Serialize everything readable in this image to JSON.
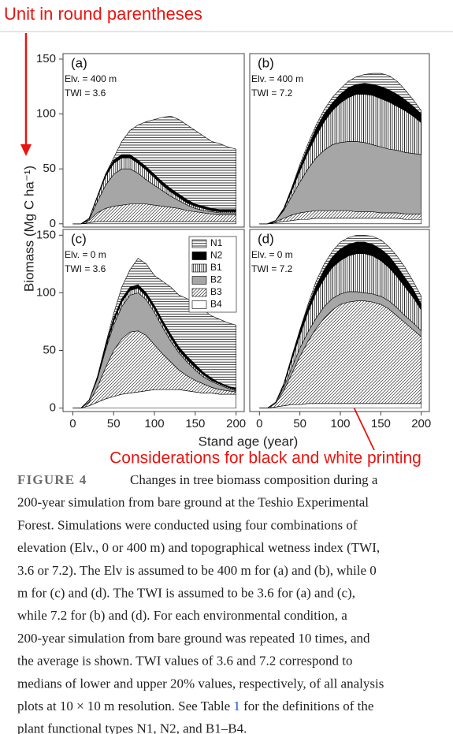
{
  "notes": {
    "top": "Unit in round parentheses",
    "bottom": "Considerations for black and white printing"
  },
  "figure": {
    "y_label": "Biomass (Mg C ha⁻¹)",
    "x_label": "Stand age (year)"
  },
  "chart_data": [
    {
      "type": "area",
      "stacked": true,
      "panel_label": "(a)",
      "annotations": [
        "Elv. = 400 m",
        "TWI = 3.6"
      ],
      "x": [
        0,
        10,
        20,
        30,
        40,
        50,
        60,
        70,
        80,
        90,
        100,
        110,
        120,
        130,
        140,
        150,
        160,
        170,
        180,
        190,
        200
      ],
      "xlim": [
        -12,
        210
      ],
      "ylim": [
        -3,
        155
      ],
      "yticks": [
        0,
        50,
        100,
        150
      ],
      "series": [
        {
          "pattern": "horizontal",
          "values": [
            0,
            0,
            0,
            0,
            0,
            2,
            12,
            22,
            32,
            41,
            50,
            59,
            66,
            68,
            68,
            67,
            64,
            61,
            60,
            57,
            55
          ]
        },
        {
          "pattern": "black",
          "values": [
            0,
            0,
            0,
            1,
            2,
            3,
            3,
            3,
            3,
            3,
            3,
            3,
            3,
            3,
            3,
            2,
            2,
            2,
            2,
            2,
            2
          ]
        },
        {
          "pattern": "vertical",
          "values": [
            0,
            0,
            1,
            4,
            8,
            10,
            10,
            10,
            9,
            9,
            7,
            5,
            4,
            3,
            2,
            2,
            2,
            1,
            1,
            1,
            1
          ]
        },
        {
          "pattern": "gray",
          "values": [
            0,
            0,
            1,
            10,
            21,
            29,
            33,
            32,
            28,
            22,
            18,
            14,
            10,
            7,
            5,
            3,
            2,
            2,
            2,
            2,
            2
          ]
        },
        {
          "pattern": "diagonal",
          "values": [
            0,
            0,
            2,
            8,
            12,
            14,
            15,
            16,
            16,
            16,
            15,
            14,
            13,
            12,
            10,
            9,
            8,
            7,
            6,
            6,
            6
          ]
        },
        {
          "pattern": "white",
          "values": [
            0,
            0,
            1,
            2,
            2,
            2,
            2,
            2,
            2,
            2,
            2,
            2,
            2,
            2,
            2,
            2,
            2,
            2,
            2,
            2,
            2
          ]
        }
      ]
    },
    {
      "type": "area",
      "stacked": true,
      "panel_label": "(b)",
      "annotations": [
        "Elv. = 400 m",
        "TWI = 7.2"
      ],
      "x": [
        0,
        10,
        20,
        30,
        40,
        50,
        60,
        70,
        80,
        90,
        100,
        110,
        120,
        130,
        140,
        150,
        160,
        170,
        180,
        190,
        200
      ],
      "xlim": [
        -12,
        210
      ],
      "ylim": [
        -3,
        155
      ],
      "series": [
        {
          "pattern": "horizontal",
          "values": [
            0,
            0,
            0,
            0,
            1,
            2,
            3,
            3,
            4,
            5,
            5,
            6,
            7,
            8,
            10,
            12,
            13,
            12,
            9,
            6,
            3
          ]
        },
        {
          "pattern": "black",
          "values": [
            0,
            0,
            0,
            1,
            2,
            4,
            5,
            7,
            7,
            7,
            8,
            9,
            9,
            10,
            10,
            11,
            11,
            11,
            10,
            9,
            8
          ]
        },
        {
          "pattern": "vertical",
          "values": [
            0,
            0,
            0,
            1,
            5,
            10,
            15,
            20,
            26,
            31,
            36,
            40,
            43,
            44,
            45,
            44,
            43,
            40,
            38,
            34,
            29
          ]
        },
        {
          "pattern": "gray",
          "values": [
            0,
            0,
            1,
            7,
            17,
            28,
            39,
            48,
            55,
            60,
            62,
            63,
            64,
            63,
            61,
            60,
            58,
            57,
            56,
            55,
            54
          ]
        },
        {
          "pattern": "diagonal",
          "values": [
            0,
            0,
            1,
            3,
            5,
            6,
            7,
            7,
            7,
            7,
            7,
            7,
            6,
            6,
            6,
            5,
            5,
            5,
            5,
            5,
            5
          ]
        },
        {
          "pattern": "white",
          "values": [
            0,
            0,
            1,
            2,
            3,
            4,
            4,
            5,
            5,
            5,
            5,
            5,
            5,
            5,
            5,
            5,
            5,
            5,
            4,
            4,
            4
          ]
        }
      ]
    },
    {
      "type": "area",
      "stacked": true,
      "panel_label": "(c)",
      "annotations": [
        "Elv. = 0 m",
        "TWI = 3.6"
      ],
      "x": [
        0,
        10,
        20,
        30,
        40,
        50,
        60,
        70,
        80,
        90,
        100,
        110,
        120,
        130,
        140,
        150,
        160,
        170,
        180,
        190,
        200
      ],
      "xlim": [
        -12,
        210
      ],
      "ylim": [
        -3,
        155
      ],
      "yticks": [
        0,
        50,
        100,
        150
      ],
      "xticks": [
        0,
        50,
        100,
        150,
        200
      ],
      "legend": "top-right",
      "series": [
        {
          "name": "N1",
          "pattern": "horizontal",
          "values": [
            0,
            0,
            0,
            0,
            1,
            4,
            10,
            15,
            23,
            25,
            26,
            34,
            41,
            45,
            50,
            52,
            54,
            54,
            55,
            55,
            55
          ]
        },
        {
          "name": "N2",
          "pattern": "black",
          "values": [
            0,
            0,
            0,
            1,
            2,
            3,
            3,
            3,
            3,
            3,
            3,
            3,
            3,
            3,
            3,
            3,
            2,
            2,
            1,
            1,
            1
          ]
        },
        {
          "name": "B1",
          "pattern": "vertical",
          "values": [
            0,
            0,
            0,
            1,
            2,
            3,
            4,
            4,
            4,
            3,
            3,
            3,
            3,
            2,
            2,
            2,
            2,
            1,
            1,
            1,
            1
          ]
        },
        {
          "name": "B2",
          "pattern": "gray",
          "values": [
            0,
            0,
            2,
            7,
            15,
            22,
            28,
            32,
            33,
            31,
            28,
            23,
            18,
            15,
            12,
            9,
            6,
            5,
            4,
            2,
            1
          ]
        },
        {
          "name": "B3",
          "pattern": "diagonal",
          "values": [
            0,
            0,
            3,
            13,
            27,
            40,
            48,
            53,
            53,
            48,
            39,
            31,
            24,
            17,
            13,
            10,
            8,
            5,
            4,
            3,
            2
          ]
        },
        {
          "name": "B4",
          "pattern": "white",
          "values": [
            0,
            0,
            2,
            5,
            8,
            10,
            12,
            13,
            14,
            15,
            16,
            16,
            16,
            16,
            15,
            14,
            13,
            13,
            12,
            12,
            12
          ]
        }
      ]
    },
    {
      "type": "area",
      "stacked": true,
      "panel_label": "(d)",
      "annotations": [
        "Elv. = 0 m",
        "TWI = 7.2"
      ],
      "x": [
        0,
        10,
        20,
        30,
        40,
        50,
        60,
        70,
        80,
        90,
        100,
        110,
        120,
        130,
        140,
        150,
        160,
        170,
        180,
        190,
        200
      ],
      "xlim": [
        -12,
        210
      ],
      "ylim": [
        -3,
        155
      ],
      "xticks": [
        0,
        50,
        100,
        150,
        200
      ],
      "series": [
        {
          "pattern": "horizontal",
          "values": [
            0,
            0,
            0,
            0,
            1,
            1,
            2,
            4,
            5,
            5,
            6,
            6,
            6,
            6,
            7,
            8,
            8,
            9,
            9,
            7,
            7
          ]
        },
        {
          "pattern": "black",
          "values": [
            0,
            0,
            0,
            1,
            2,
            4,
            5,
            6,
            8,
            9,
            10,
            10,
            10,
            10,
            10,
            10,
            10,
            9,
            8,
            7,
            5
          ]
        },
        {
          "pattern": "vertical",
          "values": [
            0,
            0,
            0,
            2,
            7,
            11,
            17,
            22,
            24,
            27,
            29,
            31,
            33,
            34,
            33,
            31,
            29,
            27,
            25,
            22,
            18
          ]
        },
        {
          "pattern": "gray",
          "values": [
            0,
            0,
            1,
            3,
            5,
            7,
            8,
            9,
            10,
            10,
            9,
            9,
            8,
            7,
            7,
            7,
            7,
            7,
            6,
            6,
            5
          ]
        },
        {
          "pattern": "diagonal",
          "values": [
            0,
            0,
            3,
            13,
            27,
            42,
            54,
            65,
            74,
            81,
            86,
            88,
            89,
            89,
            88,
            86,
            82,
            76,
            70,
            64,
            58
          ]
        },
        {
          "pattern": "white",
          "values": [
            0,
            0,
            1,
            2,
            3,
            3,
            4,
            4,
            4,
            4,
            4,
            4,
            4,
            4,
            4,
            4,
            4,
            4,
            4,
            4,
            4
          ]
        }
      ]
    }
  ],
  "caption": {
    "label": "FIGURE 4",
    "lines": [
      [
        "Changes in tree biomass composition during a"
      ],
      [
        "200-year simulation from bare ground at the Teshio Experimental"
      ],
      [
        "Forest. Simulations were conducted using four combinations of"
      ],
      [
        "elevation (Elv., 0 or 400 m) and topographical wetness index (TWI,"
      ],
      [
        "3.6 or 7.2). The Elv is assumed to be 400 m for (a) and (b), while 0"
      ],
      [
        "m for (c) and (d). The TWI is assumed to be 3.6 for (a) and (c),"
      ],
      [
        "while 7.2 for (b) and (d). For each environmental condition, a"
      ],
      [
        "200-year simulation from bare ground was repeated 10 times, and"
      ],
      [
        "the average is shown. TWI values of 3.6 and 7.2 correspond to"
      ],
      [
        "medians of lower and upper 20% values, respectively, of all analysis"
      ],
      [
        "plots at 10 × 10 m resolution. See Table ",
        {
          "text": "1",
          "link": true
        },
        " for the definitions of the"
      ],
      [
        "plant functional types N1, N2, and B1–B4."
      ]
    ]
  }
}
